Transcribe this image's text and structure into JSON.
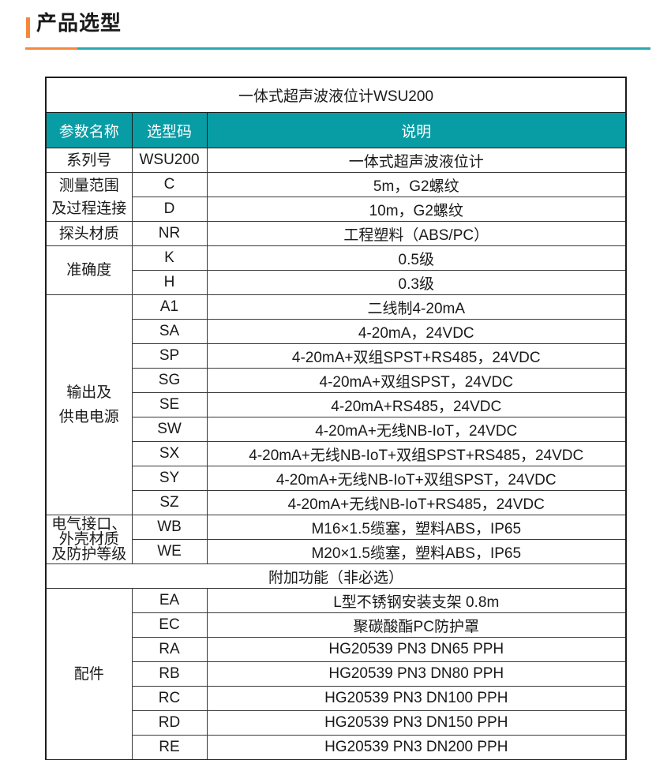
{
  "header": {
    "title": "产品选型"
  },
  "table": {
    "title": "一体式超声波液位计WSU200",
    "headers": [
      "参数名称",
      "选型码",
      "说明"
    ],
    "sections": [
      {
        "param": "系列号",
        "rows": [
          {
            "code": "WSU200",
            "desc": "一体式超声波液位计"
          }
        ]
      },
      {
        "param": "测量范围\n及过程连接",
        "rows": [
          {
            "code": "C",
            "desc": "5m，G2螺纹"
          },
          {
            "code": "D",
            "desc": "10m，G2螺纹"
          }
        ]
      },
      {
        "param": "探头材质",
        "rows": [
          {
            "code": "NR",
            "desc": "工程塑料（ABS/PC）"
          }
        ]
      },
      {
        "param": "准确度",
        "rows": [
          {
            "code": "K",
            "desc": "0.5级"
          },
          {
            "code": "H",
            "desc": "0.3级"
          }
        ]
      },
      {
        "param": "输出及\n供电电源",
        "rows": [
          {
            "code": "A1",
            "desc": "二线制4-20mA"
          },
          {
            "code": "SA",
            "desc": "4-20mA，24VDC"
          },
          {
            "code": "SP",
            "desc": "4-20mA+双组SPST+RS485，24VDC"
          },
          {
            "code": "SG",
            "desc": "4-20mA+双组SPST，24VDC"
          },
          {
            "code": "SE",
            "desc": "4-20mA+RS485，24VDC"
          },
          {
            "code": "SW",
            "desc": "4-20mA+无线NB-IoT，24VDC"
          },
          {
            "code": "SX",
            "desc": "4-20mA+无线NB-IoT+双组SPST+RS485，24VDC"
          },
          {
            "code": "SY",
            "desc": "4-20mA+无线NB-IoT+双组SPST，24VDC"
          },
          {
            "code": "SZ",
            "desc": "4-20mA+无线NB-IoT+RS485，24VDC"
          }
        ]
      },
      {
        "param": "电气接口、\n外壳材质\n及防护等级",
        "rows": [
          {
            "code": "WB",
            "desc": "M16×1.5缆塞，塑料ABS，IP65"
          },
          {
            "code": "WE",
            "desc": "M20×1.5缆塞，塑料ABS，IP65"
          }
        ]
      },
      {
        "divider": "附加功能（非必选）"
      },
      {
        "param": "配件",
        "rows": [
          {
            "code": "EA",
            "desc": "L型不锈钢安装支架 0.8m"
          },
          {
            "code": "EC",
            "desc": "聚碳酸酯PC防护罩"
          },
          {
            "code": "RA",
            "desc": "HG20539 PN3 DN65 PPH"
          },
          {
            "code": "RB",
            "desc": "HG20539 PN3 DN80 PPH"
          },
          {
            "code": "RC",
            "desc": "HG20539 PN3 DN100 PPH"
          },
          {
            "code": "RD",
            "desc": "HG20539 PN3 DN150 PPH"
          },
          {
            "code": "RE",
            "desc": "HG20539 PN3 DN200 PPH"
          }
        ]
      }
    ]
  },
  "colors": {
    "accent_orange": "#F5883C",
    "accent_teal": "#29A9B2",
    "table_header_bg": "#089CA4",
    "table_header_text": "#FFFFFF",
    "border": "#383838",
    "text": "#1A1A1A"
  }
}
